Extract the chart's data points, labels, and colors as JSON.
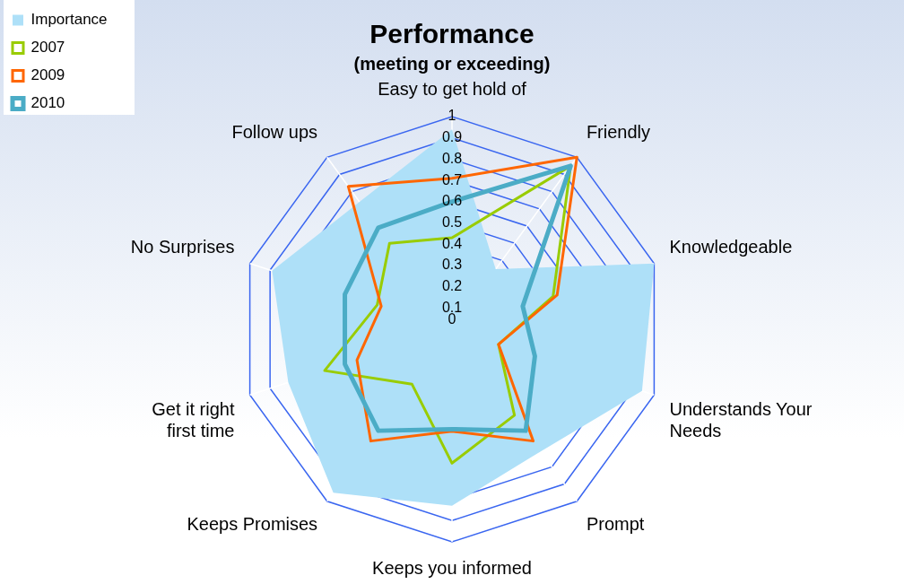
{
  "chart_data": {
    "type": "radar",
    "title": "Performance",
    "subtitle": "(meeting or exceeding)",
    "categories": [
      "Easy to get hold of",
      "Friendly",
      "Knowledgeable",
      "Understands Your Needs",
      "Prompt",
      "Keeps you informed",
      "Keeps Promises",
      "Get it right first time",
      "No Surprises",
      "Follow ups"
    ],
    "series": [
      {
        "name": "Importance",
        "type": "area",
        "color": "#aee0f8",
        "values": [
          0.94,
          0.35,
          1.0,
          0.94,
          0.71,
          0.83,
          0.95,
          0.81,
          0.89,
          0.74
        ]
      },
      {
        "name": "2007",
        "color": "#99cc00",
        "values": [
          0.43,
          0.95,
          0.5,
          0.23,
          0.5,
          0.63,
          0.32,
          0.63,
          0.37,
          0.5
        ]
      },
      {
        "name": "2009",
        "color": "#ff6600",
        "values": [
          0.71,
          1.0,
          0.52,
          0.23,
          0.65,
          0.48,
          0.65,
          0.47,
          0.35,
          0.83
        ]
      },
      {
        "name": "2010",
        "color": "#4bacc6",
        "values": [
          0.6,
          0.95,
          0.35,
          0.41,
          0.59,
          0.47,
          0.59,
          0.53,
          0.53,
          0.59
        ]
      }
    ],
    "ylim": [
      0,
      1
    ],
    "yticks": [
      0,
      0.1,
      0.2,
      0.3,
      0.4,
      0.5,
      0.6,
      0.7,
      0.8,
      0.9,
      1
    ],
    "grid": true,
    "legend": "top left",
    "marker": "none"
  }
}
